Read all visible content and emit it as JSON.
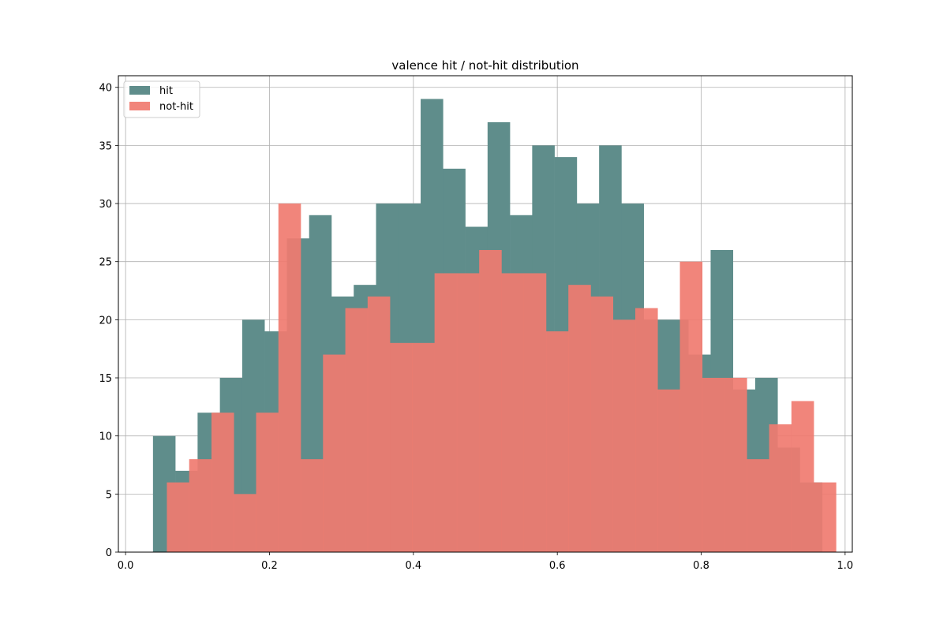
{
  "chart_data": {
    "type": "bar",
    "title": "valence hit / not-hit distribution",
    "xlabel": "",
    "ylabel": "",
    "xlim": [
      -0.01,
      1.01
    ],
    "ylim": [
      0,
      41
    ],
    "grid": true,
    "legend": "top-left",
    "xticks": [
      "0.0",
      "0.2",
      "0.4",
      "0.6",
      "0.8",
      "1.0"
    ],
    "yticks": [
      "0",
      "5",
      "10",
      "15",
      "20",
      "25",
      "30",
      "35",
      "40"
    ],
    "series": [
      {
        "name": "hit",
        "color": "#5f8d8b",
        "opacity": 1,
        "bin_start": 0.0381,
        "bin_width": 0.031,
        "values": [
          10,
          7,
          12,
          15,
          20,
          19,
          27,
          29,
          22,
          23,
          30,
          30,
          39,
          33,
          28,
          37,
          29,
          35,
          34,
          30,
          35,
          30,
          20,
          20,
          17,
          26,
          14,
          15,
          9,
          6
        ]
      },
      {
        "name": "not-hit",
        "color": "#f07b70",
        "opacity": 0.92,
        "bin_start": 0.0574,
        "bin_width": 0.031,
        "values": [
          6,
          8,
          12,
          5,
          12,
          30,
          8,
          17,
          21,
          22,
          18,
          18,
          24,
          24,
          26,
          24,
          24,
          19,
          23,
          22,
          20,
          21,
          14,
          25,
          15,
          15,
          8,
          11,
          13,
          6
        ]
      }
    ]
  }
}
